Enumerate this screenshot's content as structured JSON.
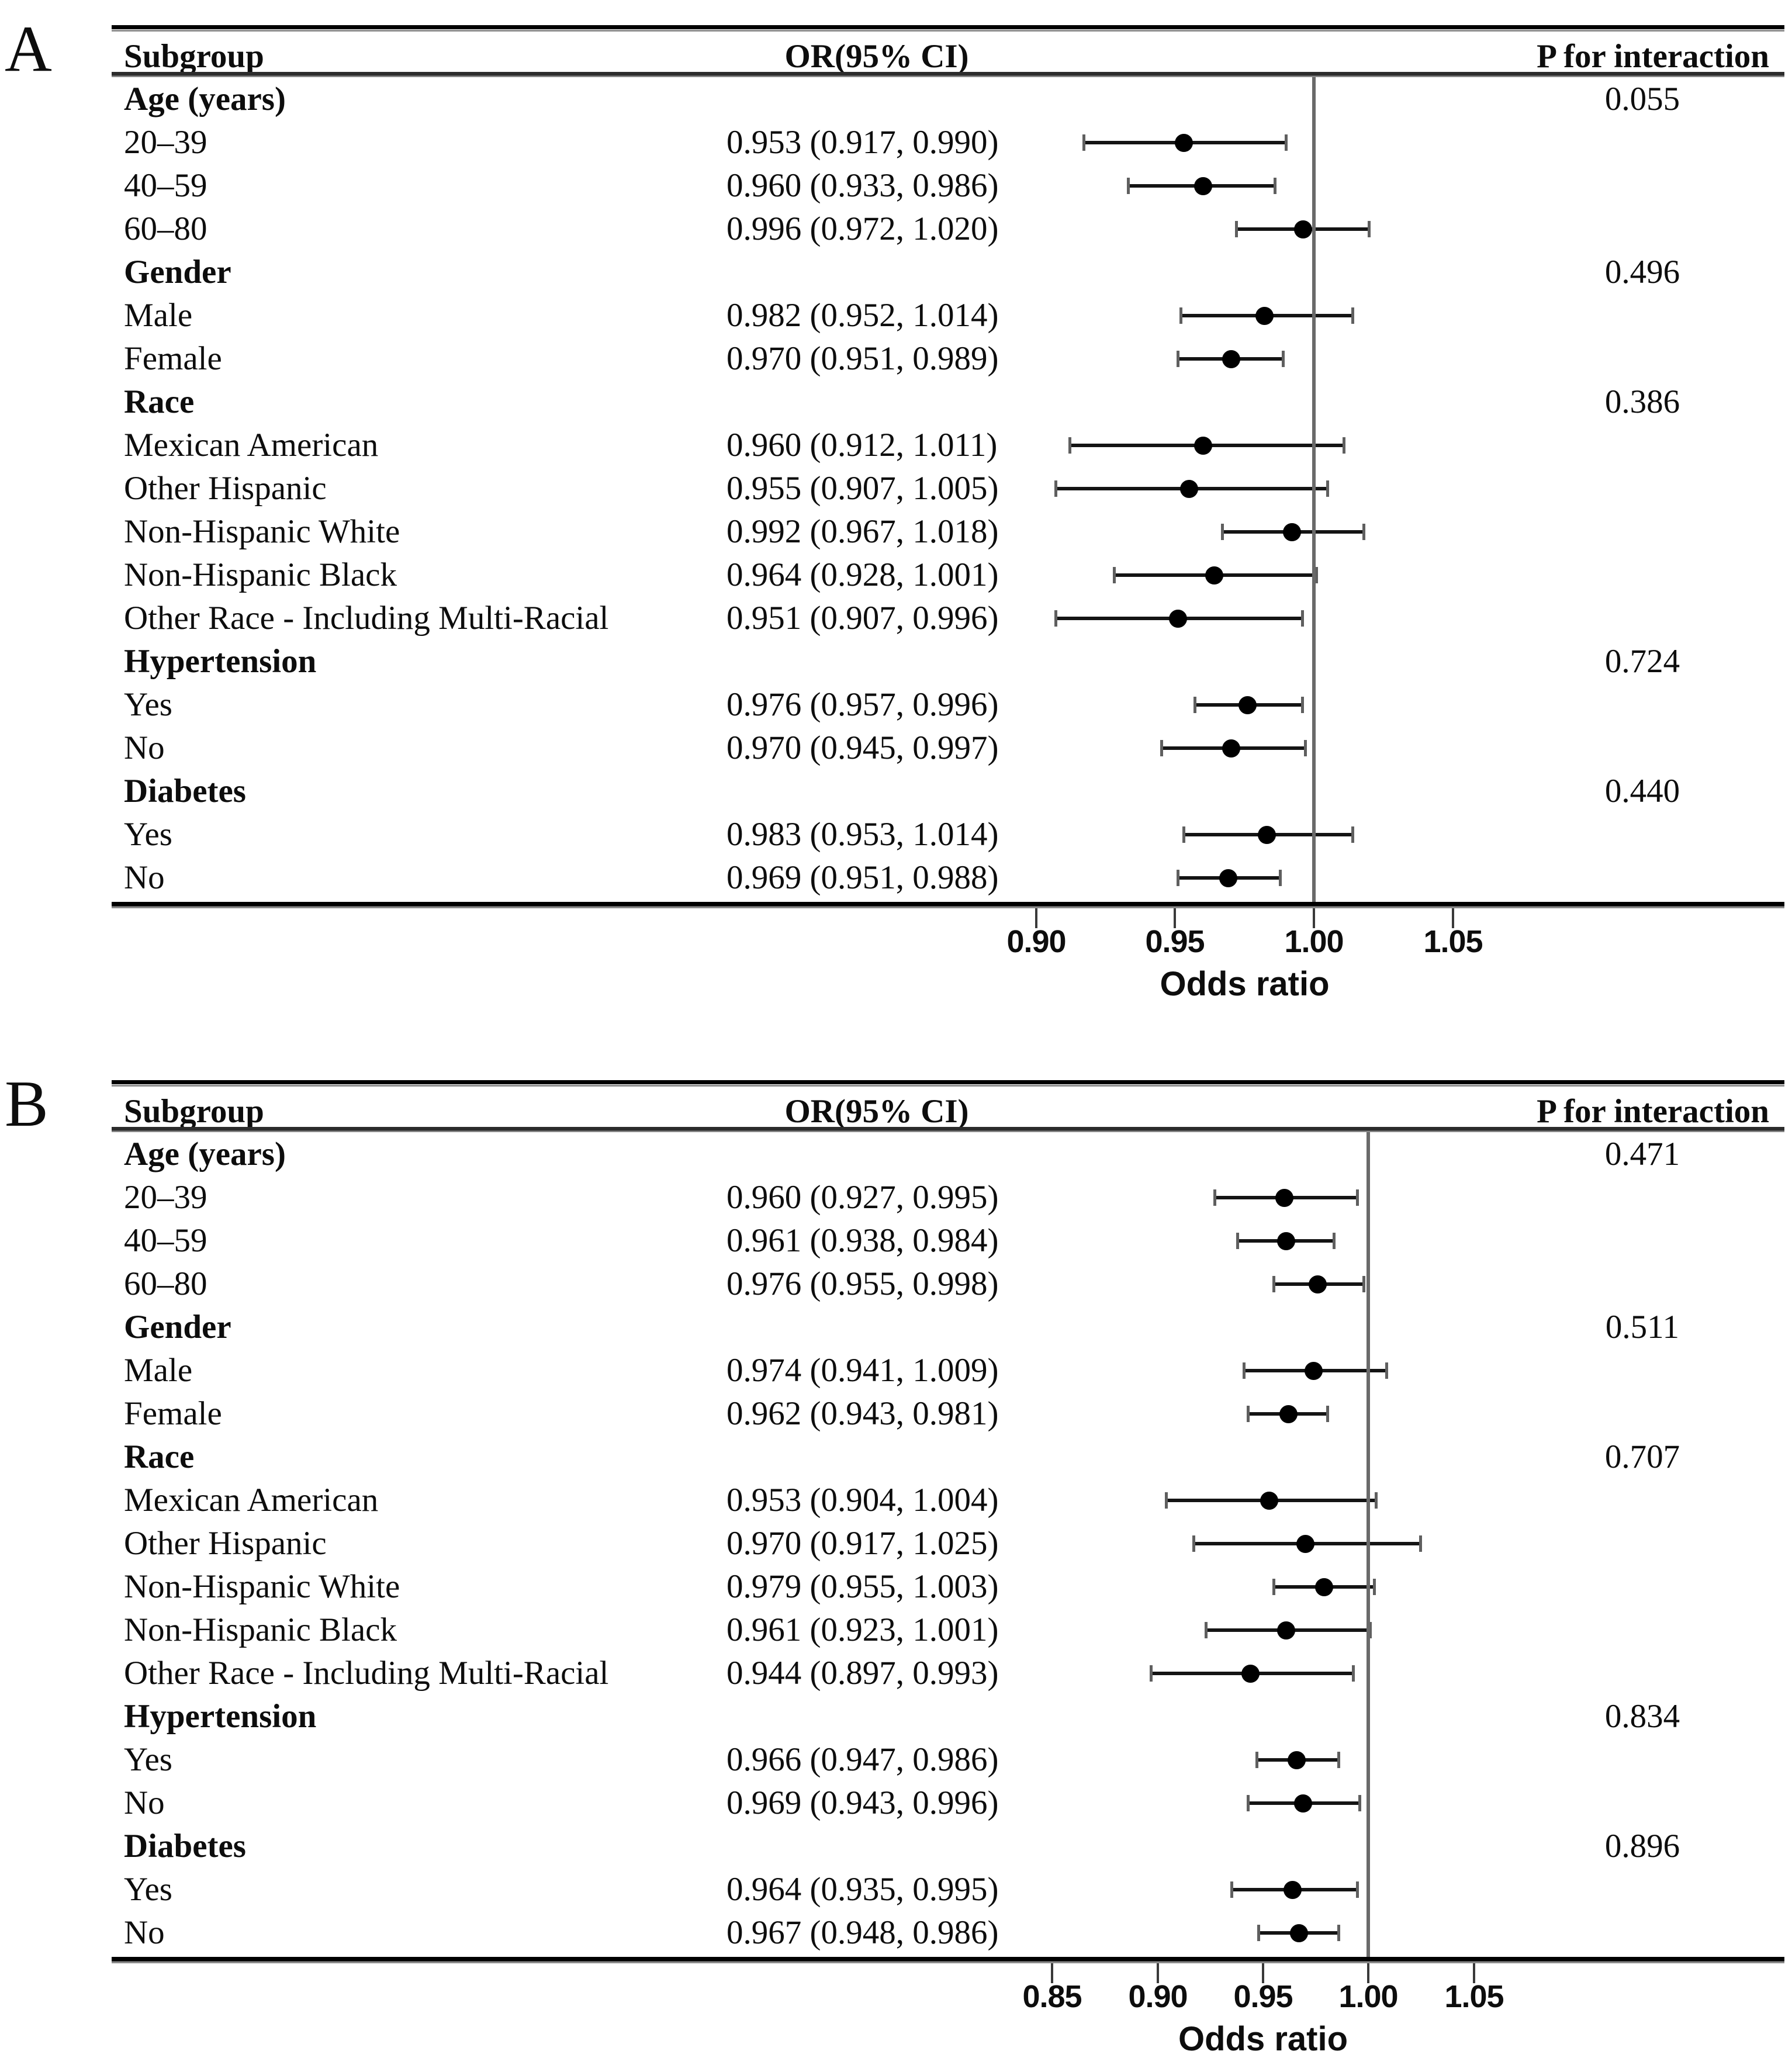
{
  "figure": {
    "background_color": "#ffffff",
    "text_color": "#0d0d0d",
    "marker_color": "#000000",
    "ref_line_color": "#6a6a6a"
  },
  "chart_data": [
    {
      "id": "A",
      "type": "forest",
      "panel_label": "A",
      "columns": {
        "subgroup": "Subgroup",
        "or_ci": "OR(95% CI)",
        "p": "P for interaction"
      },
      "xlabel": "Odds ratio",
      "x_ticks": [
        0.9,
        0.95,
        1.0,
        1.05
      ],
      "x_tick_labels": [
        "0.90",
        "0.95",
        "1.00",
        "1.05"
      ],
      "ref_value": 1.0,
      "rows": [
        {
          "label": "Age (years)",
          "group": true,
          "p": "0.055"
        },
        {
          "label": "20–39",
          "or_text": "0.953 (0.917, 0.990)",
          "or": 0.953,
          "lo": 0.917,
          "hi": 0.99
        },
        {
          "label": "40–59",
          "or_text": "0.960 (0.933, 0.986)",
          "or": 0.96,
          "lo": 0.933,
          "hi": 0.986
        },
        {
          "label": "60–80",
          "or_text": "0.996 (0.972, 1.020)",
          "or": 0.996,
          "lo": 0.972,
          "hi": 1.02
        },
        {
          "label": "Gender",
          "group": true,
          "p": "0.496"
        },
        {
          "label": "Male",
          "or_text": "0.982 (0.952, 1.014)",
          "or": 0.982,
          "lo": 0.952,
          "hi": 1.014
        },
        {
          "label": "Female",
          "or_text": "0.970 (0.951, 0.989)",
          "or": 0.97,
          "lo": 0.951,
          "hi": 0.989
        },
        {
          "label": "Race",
          "group": true,
          "p": "0.386"
        },
        {
          "label": "Mexican American",
          "or_text": "0.960 (0.912, 1.011)",
          "or": 0.96,
          "lo": 0.912,
          "hi": 1.011
        },
        {
          "label": "Other Hispanic",
          "or_text": "0.955 (0.907, 1.005)",
          "or": 0.955,
          "lo": 0.907,
          "hi": 1.005
        },
        {
          "label": "Non-Hispanic White",
          "or_text": "0.992 (0.967, 1.018)",
          "or": 0.992,
          "lo": 0.967,
          "hi": 1.018
        },
        {
          "label": "Non-Hispanic Black",
          "or_text": "0.964 (0.928, 1.001)",
          "or": 0.964,
          "lo": 0.928,
          "hi": 1.001
        },
        {
          "label": "Other Race - Including Multi-Racial",
          "or_text": "0.951 (0.907, 0.996)",
          "or": 0.951,
          "lo": 0.907,
          "hi": 0.996
        },
        {
          "label": "Hypertension",
          "group": true,
          "p": "0.724"
        },
        {
          "label": "Yes",
          "or_text": "0.976 (0.957, 0.996)",
          "or": 0.976,
          "lo": 0.957,
          "hi": 0.996
        },
        {
          "label": "No",
          "or_text": "0.970 (0.945, 0.997)",
          "or": 0.97,
          "lo": 0.945,
          "hi": 0.997
        },
        {
          "label": "Diabetes",
          "group": true,
          "p": "0.440"
        },
        {
          "label": "Yes",
          "or_text": "0.983 (0.953, 1.014)",
          "or": 0.983,
          "lo": 0.953,
          "hi": 1.014
        },
        {
          "label": "No",
          "or_text": "0.969 (0.951, 0.988)",
          "or": 0.969,
          "lo": 0.951,
          "hi": 0.988
        }
      ]
    },
    {
      "id": "B",
      "type": "forest",
      "panel_label": "B",
      "columns": {
        "subgroup": "Subgroup",
        "or_ci": "OR(95% CI)",
        "p": "P for interaction"
      },
      "xlabel": "Odds ratio",
      "x_ticks": [
        0.85,
        0.9,
        0.95,
        1.0,
        1.05
      ],
      "x_tick_labels": [
        "0.85",
        "0.90",
        "0.95",
        "1.00",
        "1.05"
      ],
      "ref_value": 1.0,
      "rows": [
        {
          "label": "Age (years)",
          "group": true,
          "p": "0.471"
        },
        {
          "label": "20–39",
          "or_text": "0.960 (0.927, 0.995)",
          "or": 0.96,
          "lo": 0.927,
          "hi": 0.995
        },
        {
          "label": "40–59",
          "or_text": "0.961 (0.938, 0.984)",
          "or": 0.961,
          "lo": 0.938,
          "hi": 0.984
        },
        {
          "label": "60–80",
          "or_text": "0.976 (0.955, 0.998)",
          "or": 0.976,
          "lo": 0.955,
          "hi": 0.998
        },
        {
          "label": "Gender",
          "group": true,
          "p": "0.511"
        },
        {
          "label": "Male",
          "or_text": "0.974 (0.941, 1.009)",
          "or": 0.974,
          "lo": 0.941,
          "hi": 1.009
        },
        {
          "label": "Female",
          "or_text": "0.962 (0.943, 0.981)",
          "or": 0.962,
          "lo": 0.943,
          "hi": 0.981
        },
        {
          "label": "Race",
          "group": true,
          "p": "0.707"
        },
        {
          "label": "Mexican American",
          "or_text": "0.953 (0.904, 1.004)",
          "or": 0.953,
          "lo": 0.904,
          "hi": 1.004
        },
        {
          "label": "Other Hispanic",
          "or_text": "0.970 (0.917, 1.025)",
          "or": 0.97,
          "lo": 0.917,
          "hi": 1.025
        },
        {
          "label": "Non-Hispanic White",
          "or_text": "0.979 (0.955, 1.003)",
          "or": 0.979,
          "lo": 0.955,
          "hi": 1.003
        },
        {
          "label": "Non-Hispanic Black",
          "or_text": "0.961 (0.923, 1.001)",
          "or": 0.961,
          "lo": 0.923,
          "hi": 1.001
        },
        {
          "label": "Other Race - Including Multi-Racial",
          "or_text": "0.944 (0.897, 0.993)",
          "or": 0.944,
          "lo": 0.897,
          "hi": 0.993
        },
        {
          "label": "Hypertension",
          "group": true,
          "p": "0.834"
        },
        {
          "label": "Yes",
          "or_text": "0.966 (0.947, 0.986)",
          "or": 0.966,
          "lo": 0.947,
          "hi": 0.986
        },
        {
          "label": "No",
          "or_text": "0.969 (0.943, 0.996)",
          "or": 0.969,
          "lo": 0.943,
          "hi": 0.996
        },
        {
          "label": "Diabetes",
          "group": true,
          "p": "0.896"
        },
        {
          "label": "Yes",
          "or_text": "0.964 (0.935, 0.995)",
          "or": 0.964,
          "lo": 0.935,
          "hi": 0.995
        },
        {
          "label": "No",
          "or_text": "0.967 (0.948, 0.986)",
          "or": 0.967,
          "lo": 0.948,
          "hi": 0.986
        }
      ]
    }
  ]
}
